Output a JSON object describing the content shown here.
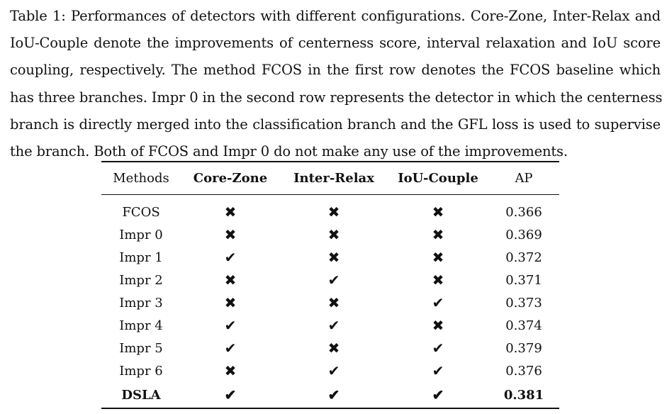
{
  "caption": {
    "lines": [
      "Table 1: Performances of detectors with different configurations. Core-Zone, Inter-Relax and",
      "IoU-Couple denote the improvements of centerness score, interval relaxation and IoU score",
      "coupling, respectively. The method FCOS in the first row denotes the FCOS baseline which",
      "has three branches. Impr 0 in the second row represents the detector in which the centerness",
      "branch is directly merged into the classification branch and the GFL loss is used to supervise",
      "the branch. Both of FCOS and Impr 0 do not make any use of the improvements."
    ]
  },
  "table": {
    "headers": [
      "Methods",
      "Core-Zone",
      "Inter-Relax",
      "IoU-Couple",
      "AP"
    ],
    "symbols": {
      "check": "✔",
      "cross": "✖"
    },
    "rows": [
      {
        "method": "FCOS",
        "core_zone": "✖",
        "inter_relax": "✖",
        "iou_couple": "✖",
        "ap": "0.366"
      },
      {
        "method": "Impr 0",
        "core_zone": "✖",
        "inter_relax": "✖",
        "iou_couple": "✖",
        "ap": "0.369"
      },
      {
        "method": "Impr 1",
        "core_zone": "✔",
        "inter_relax": "✖",
        "iou_couple": "✖",
        "ap": "0.372"
      },
      {
        "method": "Impr 2",
        "core_zone": "✖",
        "inter_relax": "✔",
        "iou_couple": "✖",
        "ap": "0.371"
      },
      {
        "method": "Impr 3",
        "core_zone": "✖",
        "inter_relax": "✖",
        "iou_couple": "✔",
        "ap": "0.373"
      },
      {
        "method": "Impr 4",
        "core_zone": "✔",
        "inter_relax": "✔",
        "iou_couple": "✖",
        "ap": "0.374"
      },
      {
        "method": "Impr 5",
        "core_zone": "✔",
        "inter_relax": "✖",
        "iou_couple": "✔",
        "ap": "0.379"
      },
      {
        "method": "Impr 6",
        "core_zone": "✖",
        "inter_relax": "✔",
        "iou_couple": "✔",
        "ap": "0.376"
      },
      {
        "method": "DSLA",
        "core_zone": "✔",
        "inter_relax": "✔",
        "iou_couple": "✔",
        "ap": "0.381"
      }
    ]
  }
}
